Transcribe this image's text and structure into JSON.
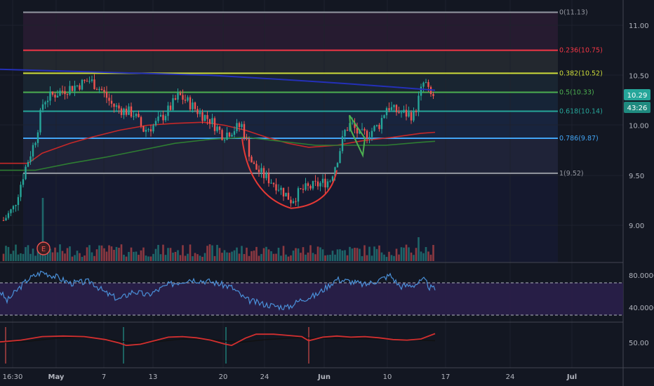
{
  "chart_data": [
    {
      "type": "candlestick",
      "panel": "price",
      "ylim": [
        8.72,
        11.2
      ],
      "y_ticks": [
        "11.00",
        "10.50",
        "10.00",
        "9.50",
        "9.00"
      ],
      "y_tick_values": [
        11.0,
        10.5,
        10.0,
        9.5,
        9.0
      ],
      "current_price": "10.29",
      "countdown": "43:26",
      "fib_levels": [
        {
          "ratio": "0",
          "value": 11.13,
          "label": "0(11.13)",
          "color": "#9598a1"
        },
        {
          "ratio": "0.236",
          "value": 10.75,
          "label": "0.236(10.75)",
          "color": "#f23645"
        },
        {
          "ratio": "0.382",
          "value": 10.52,
          "label": "0.382(10.52)",
          "color": "#cddc39"
        },
        {
          "ratio": "0.5",
          "value": 10.33,
          "label": "0.5(10.33)",
          "color": "#4caf50"
        },
        {
          "ratio": "0.618",
          "value": 10.14,
          "label": "0.618(10.14)",
          "color": "#26a69a"
        },
        {
          "ratio": "0.786",
          "value": 9.87,
          "label": "0.786(9.87)",
          "color": "#42a5f5"
        },
        {
          "ratio": "1",
          "value": 9.52,
          "label": "1(9.52)",
          "color": "#9598a1"
        }
      ],
      "earnings_marker": "E",
      "colors": {
        "up": "#26a69a",
        "down": "#ef5350",
        "trendline": "#2430b8",
        "ma_red": "#c62828",
        "ma_green": "#2e7d32",
        "cup": "#e53935",
        "flag": "#4caf50"
      }
    },
    {
      "type": "line",
      "panel": "rsi",
      "y_ticks": [
        "80.0000",
        "40.0000"
      ],
      "y_tick_values": [
        80,
        40
      ],
      "bands": [
        70,
        30
      ],
      "color": "#4a90d9"
    },
    {
      "type": "line",
      "panel": "stochastic",
      "y_ticks": [
        "50.00"
      ],
      "y_tick_values": [
        50
      ],
      "series_colors": [
        "#d32f2f",
        "#111111"
      ]
    }
  ],
  "x_axis": {
    "labels": [
      "16:30",
      "May",
      "7",
      "13",
      "20",
      "24",
      "Jun",
      "10",
      "17",
      "24",
      "Jul"
    ],
    "bold": [
      "May",
      "Jun",
      "Jul"
    ]
  }
}
